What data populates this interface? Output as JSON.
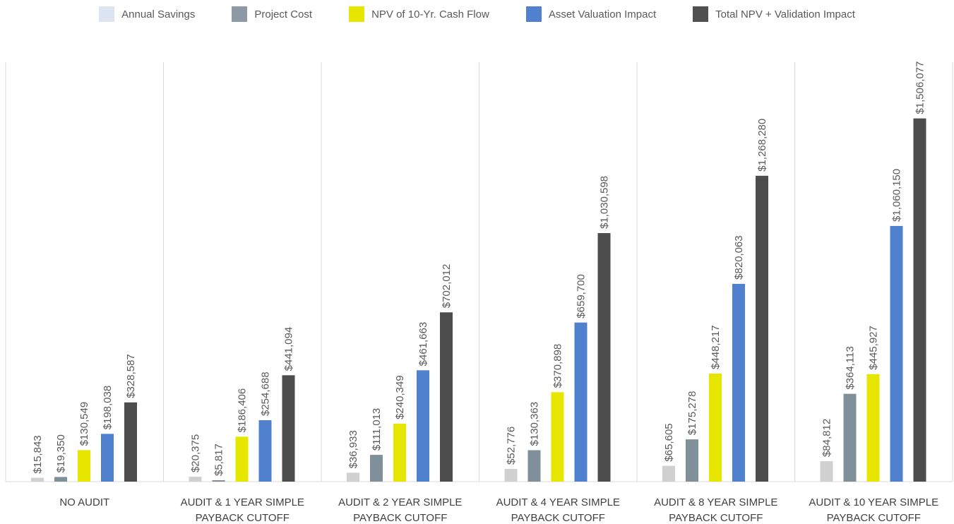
{
  "chart_data": {
    "type": "bar",
    "title": "",
    "xlabel": "",
    "ylabel": "",
    "ylim": [
      0,
      1700000
    ],
    "grid": false,
    "legend_position": "top",
    "categories": [
      [
        "NO AUDIT"
      ],
      [
        "AUDIT & 1 YEAR SIMPLE",
        "PAYBACK CUTOFF"
      ],
      [
        "AUDIT & 2 YEAR SIMPLE",
        "PAYBACK CUTOFF"
      ],
      [
        "AUDIT & 4 YEAR SIMPLE",
        "PAYBACK CUTOFF"
      ],
      [
        "AUDIT & 8 YEAR SIMPLE",
        "PAYBACK CUTOFF"
      ],
      [
        "AUDIT & 10 YEAR SIMPLE",
        "PAYBACK CUTOFF"
      ]
    ],
    "series": [
      {
        "name": "Annual Savings",
        "legend_color": "#dbe4f0",
        "bar_color": "#d0d0d0",
        "values": [
          15843,
          20375,
          36933,
          52776,
          65605,
          84812
        ],
        "labels": [
          "$15,843",
          "$20,375",
          "$36,933",
          "$52,776",
          "$65,605",
          "$84,812"
        ]
      },
      {
        "name": "Project Cost",
        "legend_color": "#8e99a5",
        "bar_color": "#7f909b",
        "values": [
          19350,
          5817,
          111013,
          130363,
          175278,
          364113
        ],
        "labels": [
          "$19,350",
          "$5,817",
          "$111,013",
          "$130,363",
          "$175,278",
          "$364,113"
        ]
      },
      {
        "name": "NPV of 10-Yr. Cash Flow",
        "legend_color": "#e6e600",
        "bar_color": "#e6e600",
        "values": [
          130549,
          186406,
          240349,
          370898,
          448217,
          445927
        ],
        "labels": [
          "$130,549",
          "$186,406",
          "$240,349",
          "$370,898",
          "$448,217",
          "$445,927"
        ]
      },
      {
        "name": "Asset Valuation Impact",
        "legend_color": "#4f81cf",
        "bar_color": "#4f81cf",
        "values": [
          198038,
          254688,
          461663,
          659700,
          820063,
          1060150
        ],
        "labels": [
          "$198,038",
          "$254,688",
          "$461,663",
          "$659,700",
          "$820,063",
          "$1,060,150"
        ]
      },
      {
        "name": "Total NPV + Validation Impact",
        "legend_color": "#505050",
        "bar_color": "#4d4d4d",
        "values": [
          328587,
          441094,
          702012,
          1030598,
          1268280,
          1506077
        ],
        "labels": [
          "$328,587",
          "$441,094",
          "$702,012",
          "$1,030,598",
          "$1,268,280",
          "$1,506,077"
        ]
      }
    ]
  }
}
